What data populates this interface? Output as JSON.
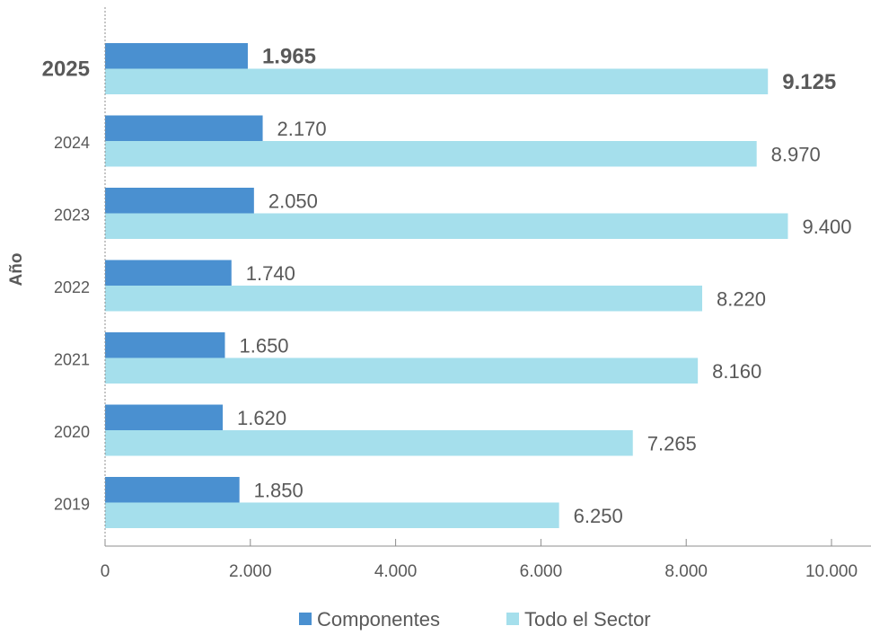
{
  "chart_data": {
    "type": "bar",
    "orientation": "horizontal",
    "title": "",
    "xlabel": "",
    "ylabel": "Año",
    "categories": [
      "2019",
      "2020",
      "2021",
      "2022",
      "2023",
      "2024",
      "2025"
    ],
    "highlight_category": "2025",
    "series": [
      {
        "name": "Componentes",
        "color": "#4a90d0",
        "values": [
          1850,
          1620,
          1650,
          1740,
          2050,
          2170,
          1965
        ],
        "labels": [
          "1.850",
          "1.620",
          "1.650",
          "1.740",
          "2.050",
          "2.170",
          "1.965"
        ]
      },
      {
        "name": "Todo el Sector",
        "color": "#a5dfec",
        "values": [
          6250,
          7265,
          8160,
          8220,
          9400,
          8970,
          9125
        ],
        "labels": [
          "6.250",
          "7.265",
          "8.160",
          "8.220",
          "9.400",
          "8.970",
          "9.125"
        ]
      }
    ],
    "xlim": [
      0,
      10000
    ],
    "xticks": [
      0,
      2000,
      4000,
      6000,
      8000,
      10000
    ],
    "xtick_labels": [
      "0",
      "2.000",
      "4.000",
      "6.000",
      "8.000",
      "10.000"
    ],
    "grid": false,
    "legend_position": "bottom"
  }
}
